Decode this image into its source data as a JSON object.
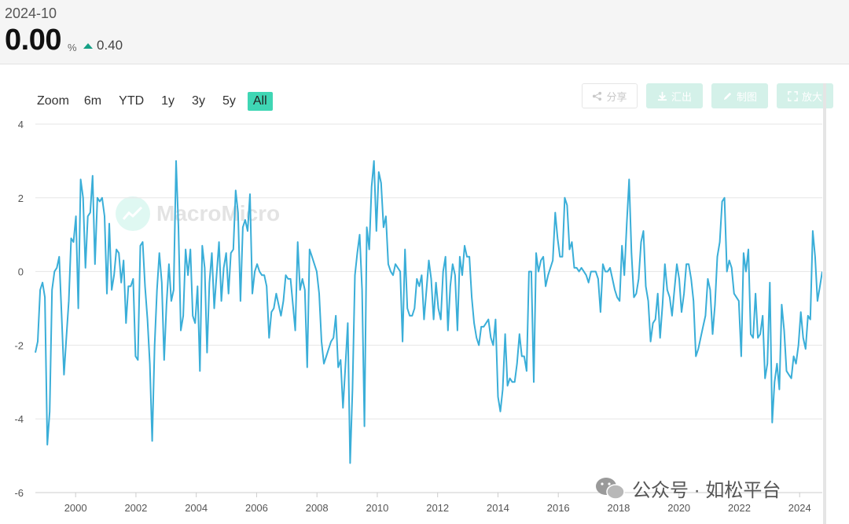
{
  "header": {
    "period": "2024-10",
    "value": "0.00",
    "unit": "%",
    "change": "0.40",
    "change_direction": "up",
    "change_color": "#16a085"
  },
  "zoom": {
    "label": "Zoom",
    "options": [
      "6m",
      "YTD",
      "1y",
      "3y",
      "5y",
      "All"
    ],
    "active": "All",
    "active_color": "#3fd6b4"
  },
  "toolbar": {
    "share_label": "分享",
    "export_label": "汇出",
    "draw_label": "制图",
    "enlarge_label": "放大"
  },
  "watermark": {
    "text": "MacroMicro"
  },
  "wechat": {
    "text": "公众号 · 如松平台"
  },
  "chart_data": {
    "type": "line",
    "title": "",
    "xlabel": "",
    "ylabel": "",
    "ylim": [
      -6,
      4
    ],
    "yticks": [
      -6,
      -4,
      -2,
      0,
      2,
      4
    ],
    "xticks": [
      "2000",
      "2002",
      "2004",
      "2006",
      "2008",
      "2010",
      "2012",
      "2014",
      "2016",
      "2018",
      "2020",
      "2022",
      "2024"
    ],
    "x_start": "1998-09",
    "x_end": "2024-10",
    "grid": true,
    "line_color": "#3aaed8",
    "series": [
      {
        "name": "",
        "values": [
          -2.2,
          -1.9,
          -0.5,
          -0.3,
          -0.7,
          -4.7,
          -3.8,
          -0.5,
          0.0,
          0.1,
          0.4,
          -1.2,
          -2.8,
          -1.8,
          -0.8,
          0.9,
          0.8,
          1.5,
          -1.0,
          2.5,
          2.0,
          0.1,
          1.5,
          1.6,
          2.6,
          0.2,
          2.0,
          1.9,
          2.0,
          1.5,
          -0.6,
          1.3,
          -0.5,
          -0.1,
          0.6,
          0.5,
          -0.3,
          0.3,
          -1.4,
          -0.4,
          -0.4,
          -0.2,
          -2.3,
          -2.4,
          0.7,
          0.8,
          -0.4,
          -1.3,
          -2.5,
          -4.6,
          -2.0,
          -0.5,
          0.5,
          -0.3,
          -2.4,
          -0.9,
          0.2,
          -0.8,
          -0.5,
          3.0,
          1.2,
          -1.6,
          -1.2,
          0.6,
          -0.1,
          0.6,
          -1.2,
          -1.4,
          -0.4,
          -2.7,
          0.7,
          0.1,
          -2.2,
          -0.3,
          0.5,
          -1.0,
          -0.1,
          0.8,
          -0.8,
          0.1,
          0.5,
          -0.6,
          0.5,
          0.6,
          2.2,
          1.6,
          -0.8,
          1.2,
          1.4,
          1.1,
          2.1,
          -0.6,
          0.0,
          0.2,
          0.0,
          -0.1,
          -0.1,
          -0.4,
          -1.8,
          -1.1,
          -1.0,
          -0.6,
          -0.9,
          -1.2,
          -0.8,
          -0.1,
          -0.2,
          -0.2,
          -0.9,
          -1.6,
          0.8,
          -0.5,
          -0.2,
          -0.5,
          -2.6,
          0.6,
          0.4,
          0.2,
          0.0,
          -0.6,
          -1.9,
          -2.5,
          -2.3,
          -2.1,
          -1.9,
          -1.8,
          -1.2,
          -2.6,
          -2.4,
          -3.7,
          -2.6,
          -1.4,
          -5.2,
          -3.2,
          -0.1,
          0.5,
          1.0,
          -0.5,
          -4.2,
          1.2,
          0.6,
          2.3,
          3.0,
          1.1,
          2.7,
          2.4,
          1.2,
          1.5,
          0.2,
          0.0,
          -0.1,
          0.2,
          0.1,
          0.0,
          -1.9,
          0.6,
          -1.0,
          -1.2,
          -1.2,
          -1.0,
          -0.2,
          -0.4,
          -0.1,
          -1.3,
          -0.5,
          0.3,
          -0.2,
          -1.3,
          -0.3,
          -1.0,
          -1.3,
          0.0,
          0.4,
          -1.6,
          -0.4,
          0.2,
          -0.1,
          -1.6,
          0.4,
          -0.1,
          0.7,
          0.4,
          0.4,
          -0.7,
          -1.4,
          -1.8,
          -2.0,
          -1.5,
          -1.5,
          -1.4,
          -1.3,
          -1.8,
          -2.0,
          -1.3,
          -3.4,
          -3.8,
          -3.2,
          -1.7,
          -3.1,
          -2.9,
          -3.0,
          -3.0,
          -2.5,
          -1.7,
          -2.3,
          -2.3,
          -2.7,
          0.0,
          0.0,
          -3.0,
          0.5,
          0.0,
          0.3,
          0.4,
          -0.4,
          -0.1,
          0.1,
          0.3,
          1.6,
          0.9,
          0.4,
          0.4,
          2.0,
          1.8,
          0.6,
          0.8,
          0.1,
          0.1,
          0.0,
          0.1,
          0.0,
          -0.1,
          -0.3,
          0.0,
          0.0,
          0.0,
          -0.2,
          -1.1,
          0.2,
          0.0,
          0.0,
          0.1,
          -0.2,
          -0.5,
          -0.7,
          -0.8,
          0.7,
          -0.1,
          1.3,
          2.5,
          0.5,
          -0.7,
          -0.6,
          -0.2,
          0.8,
          1.1,
          -0.4,
          -0.8,
          -1.9,
          -1.4,
          -1.3,
          -0.6,
          -1.8,
          -0.9,
          0.2,
          -0.5,
          -0.7,
          -1.2,
          -0.5,
          0.2,
          -0.2,
          -1.1,
          -0.6,
          0.2,
          0.2,
          -0.2,
          -0.8,
          -2.3,
          -2.1,
          -1.8,
          -1.5,
          -1.2,
          -0.2,
          -0.5,
          -1.7,
          -0.9,
          0.4,
          0.8,
          1.9,
          2.0,
          0.0,
          0.3,
          0.1,
          -0.6,
          -0.7,
          -0.8,
          -2.3,
          0.5,
          0.0,
          0.6,
          -1.7,
          -1.8,
          -0.6,
          -1.8,
          -1.7,
          -1.2,
          -2.9,
          -2.5,
          -0.3,
          -4.1,
          -3.0,
          -2.5,
          -3.2,
          -0.9,
          -1.6,
          -2.7,
          -2.8,
          -2.9,
          -2.3,
          -2.5,
          -2.0,
          -1.1,
          -1.8,
          -2.1,
          -1.2,
          -1.3,
          1.1,
          0.4,
          -0.8,
          -0.4,
          0.0
        ]
      }
    ]
  }
}
